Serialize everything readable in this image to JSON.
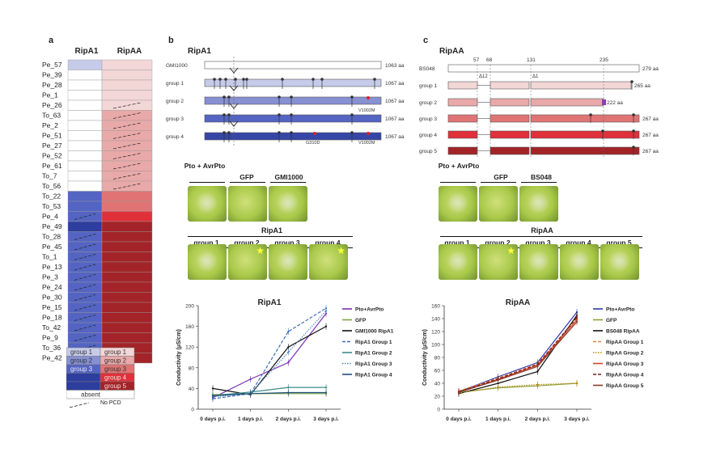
{
  "panels": {
    "a": "a",
    "b": "b",
    "c": "c"
  },
  "panel_a": {
    "col_headers": [
      "RipA1",
      "RipAA"
    ],
    "rows": [
      {
        "strain": "Pe_57",
        "a1": "g1",
        "aa": "g1",
        "pcd_a1": false,
        "pcd_aa": false
      },
      {
        "strain": "Pe_39",
        "a1": "absent",
        "aa": "g1",
        "pcd_a1": false,
        "pcd_aa": false
      },
      {
        "strain": "Pe_28",
        "a1": "absent",
        "aa": "g1",
        "pcd_a1": false,
        "pcd_aa": false
      },
      {
        "strain": "Pe_1",
        "a1": "absent",
        "aa": "g1",
        "pcd_a1": false,
        "pcd_aa": false
      },
      {
        "strain": "Pe_26",
        "a1": "absent",
        "aa": "g1",
        "pcd_a1": false,
        "pcd_aa": true
      },
      {
        "strain": "To_63",
        "a1": "absent",
        "aa": "g2",
        "pcd_a1": false,
        "pcd_aa": true
      },
      {
        "strain": "Pe_2",
        "a1": "absent",
        "aa": "g2",
        "pcd_a1": false,
        "pcd_aa": true
      },
      {
        "strain": "Pe_51",
        "a1": "absent",
        "aa": "g2",
        "pcd_a1": false,
        "pcd_aa": true
      },
      {
        "strain": "Pe_27",
        "a1": "absent",
        "aa": "g2",
        "pcd_a1": false,
        "pcd_aa": true
      },
      {
        "strain": "Pe_52",
        "a1": "absent",
        "aa": "g2",
        "pcd_a1": false,
        "pcd_aa": true
      },
      {
        "strain": "Pe_61",
        "a1": "absent",
        "aa": "g2",
        "pcd_a1": false,
        "pcd_aa": true
      },
      {
        "strain": "To_7",
        "a1": "absent",
        "aa": "g2",
        "pcd_a1": false,
        "pcd_aa": true
      },
      {
        "strain": "To_56",
        "a1": "absent",
        "aa": "g2",
        "pcd_a1": false,
        "pcd_aa": true
      },
      {
        "strain": "To_22",
        "a1": "g3",
        "aa": "g3",
        "pcd_a1": false,
        "pcd_aa": false
      },
      {
        "strain": "To_53",
        "a1": "g3",
        "aa": "g3",
        "pcd_a1": false,
        "pcd_aa": false
      },
      {
        "strain": "Pe_4",
        "a1": "g3",
        "aa": "g4",
        "pcd_a1": true,
        "pcd_aa": false
      },
      {
        "strain": "Pe_49",
        "a1": "g4",
        "aa": "g5",
        "pcd_a1": false,
        "pcd_aa": false
      },
      {
        "strain": "To_28",
        "a1": "g3",
        "aa": "g5",
        "pcd_a1": true,
        "pcd_aa": false
      },
      {
        "strain": "Pe_45",
        "a1": "g3",
        "aa": "g5",
        "pcd_a1": true,
        "pcd_aa": false
      },
      {
        "strain": "To_1",
        "a1": "g3",
        "aa": "g5",
        "pcd_a1": true,
        "pcd_aa": false
      },
      {
        "strain": "Pe_13",
        "a1": "g3",
        "aa": "g5",
        "pcd_a1": true,
        "pcd_aa": false
      },
      {
        "strain": "Pe_3",
        "a1": "g3",
        "aa": "g5",
        "pcd_a1": true,
        "pcd_aa": false
      },
      {
        "strain": "Pe_24",
        "a1": "g3",
        "aa": "g5",
        "pcd_a1": true,
        "pcd_aa": false
      },
      {
        "strain": "Pe_30",
        "a1": "g3",
        "aa": "g5",
        "pcd_a1": true,
        "pcd_aa": false
      },
      {
        "strain": "Pe_15",
        "a1": "g3",
        "aa": "g5",
        "pcd_a1": true,
        "pcd_aa": false
      },
      {
        "strain": "Pe_18",
        "a1": "g3",
        "aa": "g5",
        "pcd_a1": true,
        "pcd_aa": false
      },
      {
        "strain": "To_42",
        "a1": "g3",
        "aa": "g5",
        "pcd_a1": true,
        "pcd_aa": false
      },
      {
        "strain": "Pe_9",
        "a1": "g3",
        "aa": "g5",
        "pcd_a1": true,
        "pcd_aa": false
      },
      {
        "strain": "To_36",
        "a1": "g3",
        "aa": "g5",
        "pcd_a1": true,
        "pcd_aa": false
      },
      {
        "strain": "Pe_42",
        "a1": "g3",
        "aa": "g5",
        "pcd_a1": true,
        "pcd_aa": false
      }
    ],
    "colors_a1": {
      "g1": "#c5cbe9",
      "g2": "#8690d2",
      "g3": "#5464c2",
      "g4": "#2d3e9f",
      "absent": "#ffffff"
    },
    "colors_aa": {
      "g1": "#f3d6d6",
      "g2": "#e9a9a9",
      "g3": "#e07474",
      "g4": "#e0303a",
      "g5": "#a32428",
      "absent": "#ffffff"
    },
    "legend": [
      {
        "a1": "group 1",
        "aa": "group 1",
        "c1": "g1",
        "c2": "g1"
      },
      {
        "a1": "group 2",
        "aa": "group 2",
        "c1": "g2",
        "c2": "g2"
      },
      {
        "a1": "group 3",
        "aa": "group 3",
        "c1": "g3",
        "c2": "g3"
      },
      {
        "a1": "",
        "aa": "group 4",
        "c1": "g4",
        "c2": "g4"
      },
      {
        "a1": "",
        "aa": "group 5",
        "c1": "g4",
        "c2": "g5"
      },
      {
        "a1": "absent",
        "aa": "",
        "c1": "absent",
        "c2": "absent",
        "span": true
      }
    ],
    "no_pcd_label": "No PCD"
  },
  "panel_b": {
    "title": "RipA1",
    "rows": [
      {
        "label": "GMI1000",
        "length": "1063 aa",
        "color": "#ffffff"
      },
      {
        "label": "group 1",
        "length": "1067 aa",
        "color": "#c5cbe9"
      },
      {
        "label": "group 2",
        "length": "1067 aa",
        "color": "#8690d2"
      },
      {
        "label": "group 3",
        "length": "1067 aa",
        "color": "#5464c2"
      },
      {
        "label": "group 4",
        "length": "1067 aa",
        "color": "#3546a6"
      }
    ],
    "mutations": {
      "v1002m": "V1002M",
      "g310d": "G310D"
    },
    "leaf_header_top": [
      "Pto + AvrPto",
      "GFP",
      "GMI1000"
    ],
    "leaf_group_title": "RipA1",
    "leaf_header_bottom": [
      "group 1",
      "group 2",
      "group 3",
      "group 4"
    ]
  },
  "panel_c": {
    "title": "RipAA",
    "rows": [
      {
        "label": "BS048",
        "length": "279 aa",
        "color": "#ffffff"
      },
      {
        "label": "group 1",
        "length": "265 aa",
        "color": "#f3d6d6"
      },
      {
        "label": "group 2",
        "length": "222 aa",
        "color": "#e9a9a9"
      },
      {
        "label": "group 3",
        "length": "267 aa",
        "color": "#e07474"
      },
      {
        "label": "group 4",
        "length": "267 aa",
        "color": "#e0303a"
      },
      {
        "label": "group 5",
        "length": "267 aa",
        "color": "#a32428"
      }
    ],
    "positions": [
      "57",
      "68",
      "131",
      "235"
    ],
    "deletions": [
      "Δ12",
      "Δ1"
    ],
    "leaf_header_top": [
      "Pto + AvrPto",
      "GFP",
      "BS048"
    ],
    "leaf_group_title": "RipAA",
    "leaf_header_bottom": [
      "group 1",
      "group 2",
      "group 3",
      "group 4",
      "group 5"
    ]
  },
  "chart_data": [
    {
      "type": "line",
      "title": "RipA1",
      "xlabel": "",
      "ylabel": "Conductivity (µS/cm)",
      "categories": [
        "0 days p.i.",
        "1 days p.i.",
        "2 days p.i.",
        "3 days p.i."
      ],
      "ylim": [
        0,
        200
      ],
      "yticks": [
        0,
        40,
        80,
        120,
        160,
        200
      ],
      "series": [
        {
          "name": "Pto+AvrPto",
          "values": [
            22,
            58,
            90,
            185
          ],
          "color": "#7b2fb0",
          "dash": "solid"
        },
        {
          "name": "GFP",
          "values": [
            28,
            30,
            30,
            30
          ],
          "color": "#7aa33c",
          "dash": "solid"
        },
        {
          "name": "GMI1000 RipA1",
          "values": [
            40,
            28,
            120,
            160
          ],
          "color": "#111111",
          "dash": "solid"
        },
        {
          "name": "RipA1 Group 1",
          "values": [
            20,
            30,
            150,
            195
          ],
          "color": "#3d6fb6",
          "dash": "dashed"
        },
        {
          "name": "RipA1 Group 2",
          "values": [
            26,
            33,
            42,
            42
          ],
          "color": "#3b8b8c",
          "dash": "solid"
        },
        {
          "name": "RipA1 Group 3",
          "values": [
            24,
            30,
            110,
            190
          ],
          "color": "#4a86c5",
          "dash": "dotted"
        },
        {
          "name": "RipA1 Group 4",
          "values": [
            26,
            30,
            32,
            32
          ],
          "color": "#1f4e7a",
          "dash": "solid"
        }
      ]
    },
    {
      "type": "line",
      "title": "RipAA",
      "xlabel": "",
      "ylabel": "Conductivity (µS/cm)",
      "categories": [
        "0 days p.i.",
        "1 days p.i.",
        "2 days p.i.",
        "3 days p.i."
      ],
      "ylim": [
        0,
        160
      ],
      "yticks": [
        0,
        20,
        40,
        60,
        80,
        100,
        120,
        140,
        160
      ],
      "series": [
        {
          "name": "Pto+AvrPto",
          "values": [
            27,
            50,
            72,
            150
          ],
          "color": "#2c3aa8",
          "dash": "solid"
        },
        {
          "name": "GFP",
          "values": [
            26,
            33,
            36,
            40
          ],
          "color": "#8aa23a",
          "dash": "solid"
        },
        {
          "name": "BS048 RipAA",
          "values": [
            24,
            40,
            58,
            145
          ],
          "color": "#111111",
          "dash": "solid"
        },
        {
          "name": "RipAA Group 1",
          "values": [
            28,
            48,
            70,
            140
          ],
          "color": "#e8823a",
          "dash": "dashed"
        },
        {
          "name": "RipAA Group 2",
          "values": [
            25,
            34,
            38,
            40
          ],
          "color": "#b8860b",
          "dash": "dotted"
        },
        {
          "name": "RipAA Group 3",
          "values": [
            26,
            46,
            68,
            138
          ],
          "color": "#d2452b",
          "dash": "solid"
        },
        {
          "name": "RipAA Group 4",
          "values": [
            27,
            47,
            69,
            142
          ],
          "color": "#7a1a1a",
          "dash": "dashed"
        },
        {
          "name": "RipAA Group 5",
          "values": [
            26,
            45,
            66,
            135
          ],
          "color": "#8b3a2a",
          "dash": "solid"
        }
      ]
    }
  ]
}
